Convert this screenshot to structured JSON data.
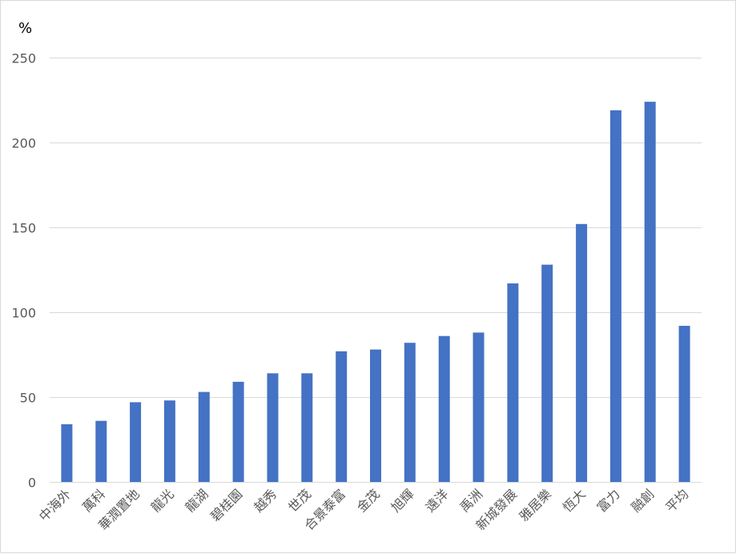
{
  "chart_data": {
    "type": "bar",
    "title": "",
    "xlabel": "",
    "ylabel": "%",
    "ylim": [
      0,
      250
    ],
    "yticks": [
      0,
      50,
      100,
      150,
      200,
      250
    ],
    "grid": true,
    "legend": "none",
    "categories": [
      "中海外",
      "萬科",
      "華潤置地",
      "龍光",
      "龍湖",
      "碧桂園",
      "越秀",
      "世茂",
      "合景泰富",
      "金茂",
      "旭輝",
      "遠洋",
      "禹洲",
      "新城發展",
      "雅居樂",
      "恆大",
      "富力",
      "融創",
      "平均"
    ],
    "values": [
      34,
      36,
      47,
      48,
      53,
      59,
      64,
      64,
      77,
      78,
      82,
      86,
      88,
      117,
      128,
      152,
      219,
      224,
      92
    ],
    "colors": {
      "bar": "#4472c4",
      "grid": "#d9d9d9",
      "axis": "#d9d9d9",
      "text": "#595959"
    }
  }
}
